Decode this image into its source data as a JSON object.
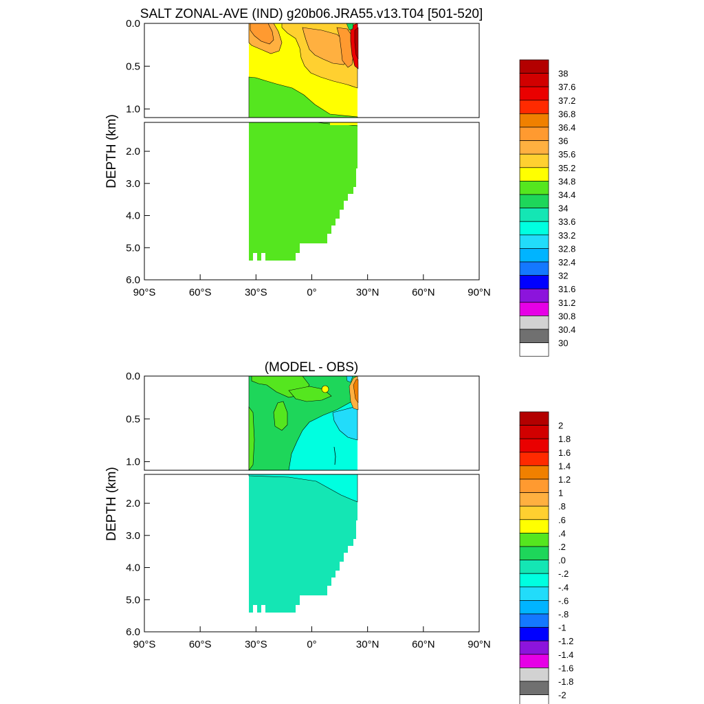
{
  "chart_data": [
    {
      "type": "heatmap",
      "title": "SALT ZONAL-AVE (IND) g20b06.JRA55.v13.T04 [501-520]",
      "ylabel": "DEPTH (km)",
      "x_ticks": [
        "90°S",
        "60°S",
        "30°S",
        "0°",
        "30°N",
        "60°N",
        "90°N"
      ],
      "x_tick_values": [
        -90,
        -60,
        -30,
        0,
        30,
        60,
        90
      ],
      "xlim": [
        -90,
        90
      ],
      "upper_y_ticks": [
        "0.0",
        "0.5",
        "1.0"
      ],
      "upper_y_values": [
        0,
        0.5,
        1.0
      ],
      "upper_ylim": [
        0,
        1.1
      ],
      "lower_y_ticks": [
        "2.0",
        "3.0",
        "4.0",
        "5.0",
        "6.0"
      ],
      "lower_y_values": [
        2,
        3,
        4,
        5,
        6
      ],
      "lower_ylim": [
        1.1,
        6.0
      ],
      "colorbar_labels": [
        "38",
        "37.6",
        "37.2",
        "36.8",
        "36.4",
        "36",
        "35.6",
        "35.2",
        "34.8",
        "34.4",
        "34",
        "33.6",
        "33.2",
        "32.8",
        "32.4",
        "32",
        "31.6",
        "31.2",
        "30.8",
        "30.4",
        "30"
      ],
      "colors": [
        "#b30000",
        "#d10000",
        "#ea0000",
        "#ff2a00",
        "#f08000",
        "#ff9a30",
        "#ffb040",
        "#ffd030",
        "#ffff00",
        "#55e61f",
        "#1ed65a",
        "#14e6b4",
        "#00ffe0",
        "#22dcfa",
        "#00b4ff",
        "#1478ff",
        "#0000ff",
        "#8c14dc",
        "#e600e6",
        "#d2d2d2",
        "#707070",
        "#ffffff"
      ]
    },
    {
      "type": "heatmap",
      "title": "(MODEL - OBS)",
      "ylabel": "DEPTH (km)",
      "x_ticks": [
        "90°S",
        "60°S",
        "30°S",
        "0°",
        "30°N",
        "60°N",
        "90°N"
      ],
      "x_tick_values": [
        -90,
        -60,
        -30,
        0,
        30,
        60,
        90
      ],
      "xlim": [
        -90,
        90
      ],
      "upper_y_ticks": [
        "0.0",
        "0.5",
        "1.0"
      ],
      "upper_y_values": [
        0,
        0.5,
        1.0
      ],
      "upper_ylim": [
        0,
        1.1
      ],
      "lower_y_ticks": [
        "2.0",
        "3.0",
        "4.0",
        "5.0",
        "6.0"
      ],
      "lower_y_values": [
        2,
        3,
        4,
        5,
        6
      ],
      "lower_ylim": [
        1.1,
        6.0
      ],
      "colorbar_labels": [
        "2",
        "1.8",
        "1.6",
        "1.4",
        "1.2",
        "1",
        ".8",
        ".6",
        ".4",
        ".2",
        ".0",
        "-.2",
        "-.4",
        "-.6",
        "-.8",
        "-1",
        "-1.2",
        "-1.4",
        "-1.6",
        "-1.8",
        "-2"
      ],
      "colors": [
        "#b30000",
        "#d10000",
        "#ea0000",
        "#ff2a00",
        "#f08000",
        "#ff9a30",
        "#ffb040",
        "#ffd030",
        "#ffff00",
        "#55e61f",
        "#1ed65a",
        "#14e6b4",
        "#00ffe0",
        "#22dcfa",
        "#00b4ff",
        "#1478ff",
        "#0000ff",
        "#8c14dc",
        "#e600e6",
        "#d2d2d2",
        "#707070",
        "#ffffff"
      ]
    }
  ]
}
